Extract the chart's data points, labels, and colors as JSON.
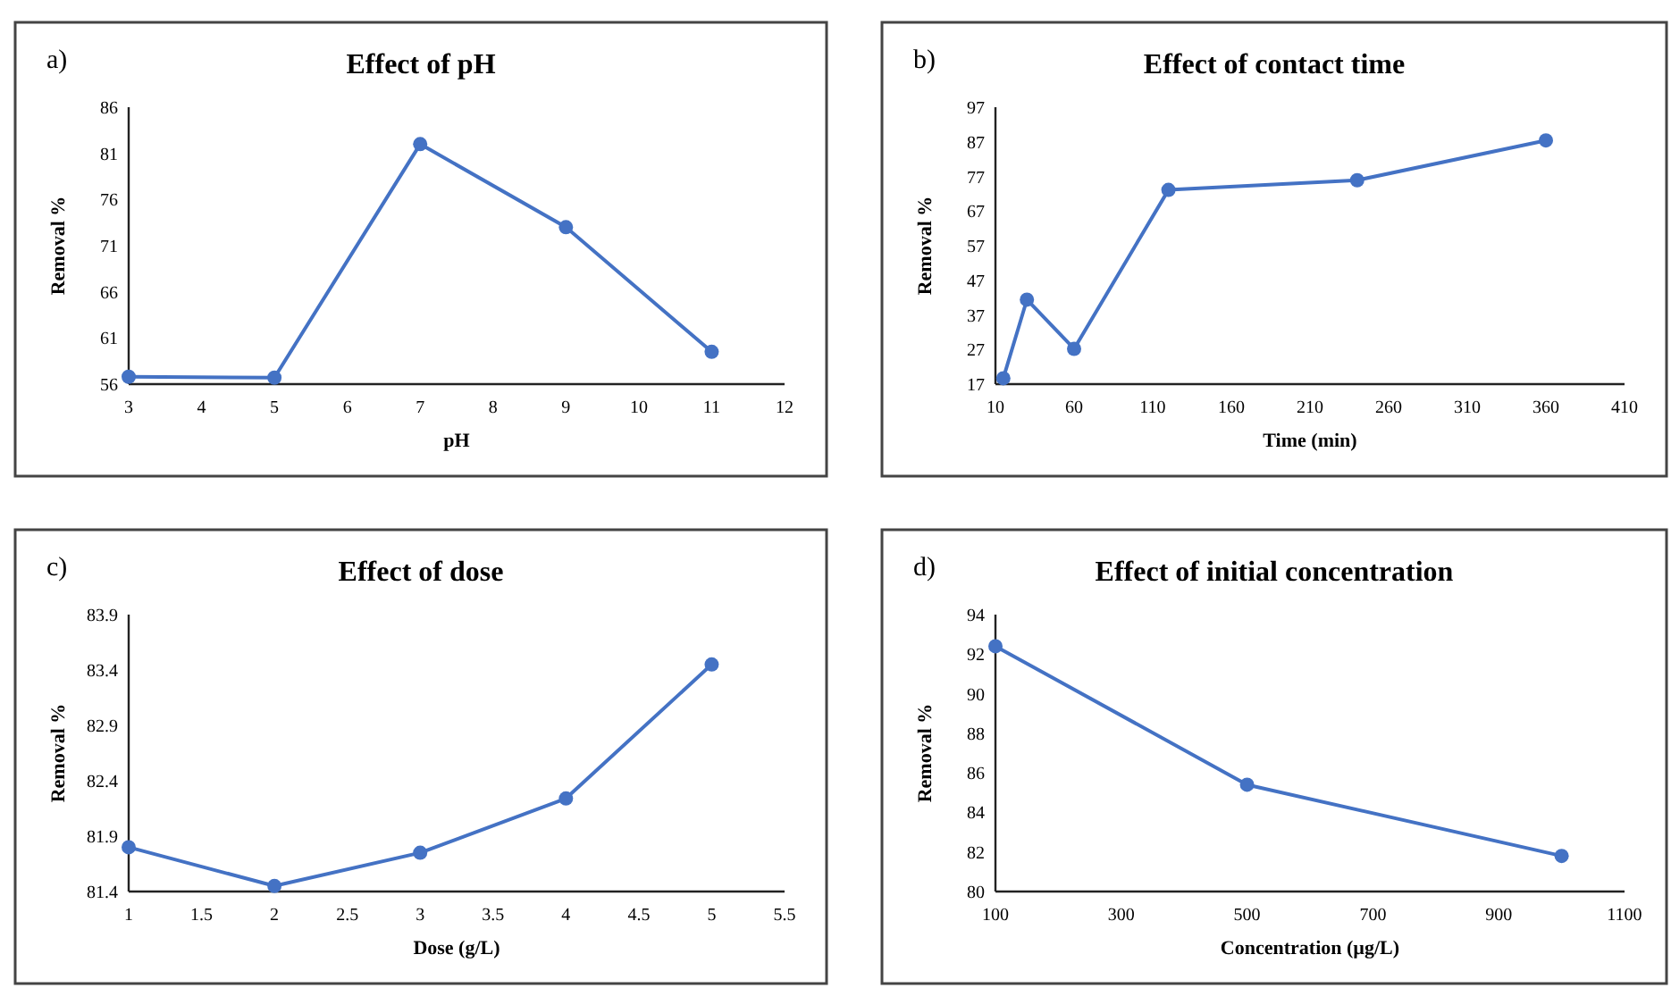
{
  "chart_data": [
    {
      "type": "line",
      "title": "Effect of pH",
      "xlabel": "pH",
      "ylabel": "Removal %",
      "annotations": [
        "a)"
      ],
      "x": [
        3,
        5,
        7,
        9,
        11
      ],
      "series": [
        {
          "color": "#4472c4",
          "values": [
            56.8,
            56.7,
            82,
            73,
            59.5
          ]
        }
      ],
      "xlim": [
        3,
        12
      ],
      "xticks": [
        3,
        4,
        5,
        6,
        7,
        8,
        9,
        10,
        11,
        12
      ],
      "ylim": [
        56,
        86
      ],
      "yticks": [
        56,
        61,
        66,
        71,
        76,
        81,
        86
      ],
      "marker": "circle",
      "grid": false
    },
    {
      "type": "line",
      "title": "Effect of contact time",
      "xlabel": "Time (min)",
      "ylabel": "Removal %",
      "annotations": [
        "b)"
      ],
      "x": [
        15,
        30,
        60,
        120,
        240,
        360
      ],
      "series": [
        {
          "color": "#4472c4",
          "values": [
            18.7,
            41.4,
            27.2,
            73.1,
            75.9,
            87.4
          ]
        }
      ],
      "xlim": [
        10,
        410
      ],
      "xticks": [
        10,
        60,
        110,
        160,
        210,
        260,
        310,
        360,
        410
      ],
      "ylim": [
        17,
        97
      ],
      "yticks": [
        17,
        27,
        37,
        47,
        57,
        67,
        77,
        87,
        97
      ],
      "marker": "circle",
      "grid": false
    },
    {
      "type": "line",
      "title": "Effect of dose",
      "xlabel": "Dose (g/L)",
      "ylabel": "Removal %",
      "annotations": [
        "c)"
      ],
      "x": [
        1,
        2,
        3,
        4,
        5
      ],
      "series": [
        {
          "color": "#4472c4",
          "values": [
            81.8,
            81.45,
            81.75,
            82.24,
            83.45
          ]
        }
      ],
      "xlim": [
        1,
        5.5
      ],
      "xticks": [
        1,
        1.5,
        2,
        2.5,
        3,
        3.5,
        4,
        4.5,
        5,
        5.5
      ],
      "ylim": [
        81.4,
        83.9
      ],
      "yticks": [
        81.4,
        81.9,
        82.4,
        82.9,
        83.4,
        83.9
      ],
      "marker": "circle",
      "grid": false
    },
    {
      "type": "line",
      "title": "Effect of initial concentration",
      "xlabel": "Concentration (µg/L)",
      "ylabel": "Removal %",
      "annotations": [
        "d)"
      ],
      "x": [
        100,
        500,
        1000
      ],
      "series": [
        {
          "color": "#4472c4",
          "values": [
            92.4,
            85.4,
            81.8
          ]
        }
      ],
      "xlim": [
        100,
        1100
      ],
      "xticks": [
        100,
        300,
        500,
        700,
        900,
        1100
      ],
      "ylim": [
        80,
        94
      ],
      "yticks": [
        80,
        82,
        84,
        86,
        88,
        90,
        92,
        94
      ],
      "marker": "circle",
      "grid": false
    }
  ]
}
